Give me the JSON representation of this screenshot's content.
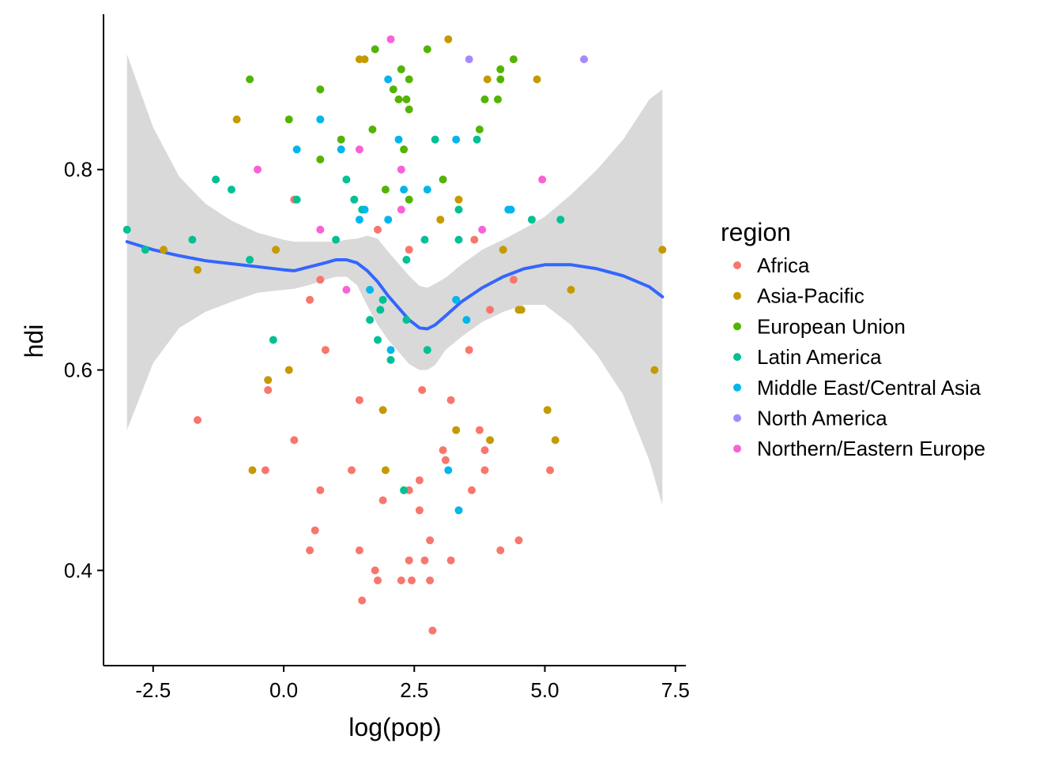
{
  "chart_data": {
    "type": "scatter",
    "xlabel": "log(pop)",
    "ylabel": "hdi",
    "xlim": [
      -3.45,
      7.7
    ],
    "ylim": [
      0.305,
      0.955
    ],
    "x_ticks": [
      -2.5,
      0.0,
      2.5,
      5.0,
      7.5
    ],
    "x_tick_labels": [
      "-2.5",
      "0.0",
      "2.5",
      "5.0",
      "7.5"
    ],
    "y_ticks": [
      0.4,
      0.6,
      0.8
    ],
    "y_tick_labels": [
      "0.4",
      "0.6",
      "0.8"
    ],
    "grid": false,
    "legend": {
      "title": "region",
      "position": "right",
      "entries": [
        {
          "name": "Africa",
          "color": "#F8766D"
        },
        {
          "name": "Asia-Pacific",
          "color": "#C49A00"
        },
        {
          "name": "European Union",
          "color": "#53B400"
        },
        {
          "name": "Latin America",
          "color": "#00C094"
        },
        {
          "name": "Middle East/Central Asia",
          "color": "#00B6EB"
        },
        {
          "name": "North America",
          "color": "#A58AFF"
        },
        {
          "name": "Northern/Eastern Europe",
          "color": "#FB61D7"
        }
      ]
    },
    "series": [
      {
        "name": "Africa",
        "color": "#F8766D",
        "points": [
          [
            -1.65,
            0.55
          ],
          [
            -0.3,
            0.58
          ],
          [
            -0.35,
            0.5
          ],
          [
            0.2,
            0.53
          ],
          [
            0.2,
            0.77
          ],
          [
            0.5,
            0.67
          ],
          [
            0.5,
            0.42
          ],
          [
            0.6,
            0.44
          ],
          [
            0.7,
            0.48
          ],
          [
            0.7,
            0.69
          ],
          [
            0.8,
            0.62
          ],
          [
            1.3,
            0.5
          ],
          [
            1.45,
            0.57
          ],
          [
            1.45,
            0.42
          ],
          [
            1.5,
            0.37
          ],
          [
            1.75,
            0.4
          ],
          [
            1.8,
            0.39
          ],
          [
            1.8,
            0.74
          ],
          [
            1.9,
            0.47
          ],
          [
            2.25,
            0.39
          ],
          [
            2.4,
            0.41
          ],
          [
            2.4,
            0.48
          ],
          [
            2.4,
            0.72
          ],
          [
            2.45,
            0.39
          ],
          [
            2.6,
            0.49
          ],
          [
            2.6,
            0.46
          ],
          [
            2.65,
            0.58
          ],
          [
            2.7,
            0.41
          ],
          [
            2.8,
            0.43
          ],
          [
            2.8,
            0.39
          ],
          [
            2.85,
            0.34
          ],
          [
            3.05,
            0.52
          ],
          [
            3.1,
            0.51
          ],
          [
            3.2,
            0.41
          ],
          [
            3.2,
            0.57
          ],
          [
            3.55,
            0.62
          ],
          [
            3.6,
            0.48
          ],
          [
            3.65,
            0.73
          ],
          [
            3.75,
            0.54
          ],
          [
            3.85,
            0.52
          ],
          [
            3.85,
            0.5
          ],
          [
            3.95,
            0.66
          ],
          [
            4.15,
            0.42
          ],
          [
            4.4,
            0.69
          ],
          [
            4.5,
            0.43
          ],
          [
            5.1,
            0.5
          ]
        ]
      },
      {
        "name": "Asia-Pacific",
        "color": "#C49A00",
        "points": [
          [
            -2.3,
            0.72
          ],
          [
            -1.65,
            0.7
          ],
          [
            -0.9,
            0.85
          ],
          [
            -0.6,
            0.5
          ],
          [
            -0.15,
            0.72
          ],
          [
            -0.3,
            0.59
          ],
          [
            0.1,
            0.6
          ],
          [
            1.45,
            0.91
          ],
          [
            1.55,
            0.91
          ],
          [
            1.9,
            0.56
          ],
          [
            1.95,
            0.5
          ],
          [
            3.0,
            0.75
          ],
          [
            3.15,
            0.93
          ],
          [
            3.3,
            0.54
          ],
          [
            3.35,
            0.77
          ],
          [
            3.9,
            0.89
          ],
          [
            3.95,
            0.53
          ],
          [
            4.2,
            0.72
          ],
          [
            4.5,
            0.66
          ],
          [
            4.55,
            0.66
          ],
          [
            4.85,
            0.89
          ],
          [
            5.05,
            0.56
          ],
          [
            5.2,
            0.53
          ],
          [
            5.5,
            0.68
          ],
          [
            7.1,
            0.6
          ],
          [
            7.25,
            0.72
          ]
        ]
      },
      {
        "name": "European Union",
        "color": "#53B400",
        "points": [
          [
            -0.65,
            0.89
          ],
          [
            0.1,
            0.85
          ],
          [
            0.7,
            0.88
          ],
          [
            0.7,
            0.81
          ],
          [
            1.1,
            0.83
          ],
          [
            1.75,
            0.92
          ],
          [
            1.7,
            0.84
          ],
          [
            1.95,
            0.78
          ],
          [
            2.1,
            0.88
          ],
          [
            2.2,
            0.87
          ],
          [
            2.25,
            0.9
          ],
          [
            2.3,
            0.82
          ],
          [
            2.35,
            0.87
          ],
          [
            2.4,
            0.89
          ],
          [
            2.4,
            0.86
          ],
          [
            2.4,
            0.77
          ],
          [
            2.75,
            0.92
          ],
          [
            3.05,
            0.79
          ],
          [
            3.75,
            0.84
          ],
          [
            3.85,
            0.87
          ],
          [
            4.1,
            0.87
          ],
          [
            4.15,
            0.89
          ],
          [
            4.15,
            0.9
          ],
          [
            4.4,
            0.91
          ]
        ]
      },
      {
        "name": "Latin America",
        "color": "#00C094",
        "points": [
          [
            -3.0,
            0.74
          ],
          [
            -2.65,
            0.72
          ],
          [
            -1.75,
            0.73
          ],
          [
            -1.3,
            0.79
          ],
          [
            -1.0,
            0.78
          ],
          [
            -0.65,
            0.71
          ],
          [
            -0.2,
            0.63
          ],
          [
            0.25,
            0.77
          ],
          [
            1.0,
            0.73
          ],
          [
            1.2,
            0.79
          ],
          [
            1.35,
            0.77
          ],
          [
            1.5,
            0.76
          ],
          [
            1.65,
            0.65
          ],
          [
            1.8,
            0.63
          ],
          [
            1.85,
            0.66
          ],
          [
            1.9,
            0.67
          ],
          [
            2.05,
            0.61
          ],
          [
            2.3,
            0.48
          ],
          [
            2.35,
            0.71
          ],
          [
            2.35,
            0.65
          ],
          [
            2.7,
            0.73
          ],
          [
            2.75,
            0.62
          ],
          [
            2.9,
            0.83
          ],
          [
            3.35,
            0.73
          ],
          [
            3.35,
            0.76
          ],
          [
            3.7,
            0.83
          ],
          [
            4.75,
            0.75
          ],
          [
            5.3,
            0.75
          ]
        ]
      },
      {
        "name": "Middle East/Central Asia",
        "color": "#00B6EB",
        "points": [
          [
            0.25,
            0.82
          ],
          [
            0.7,
            0.85
          ],
          [
            1.1,
            0.82
          ],
          [
            1.45,
            0.75
          ],
          [
            1.55,
            0.76
          ],
          [
            1.65,
            0.68
          ],
          [
            2.0,
            0.75
          ],
          [
            2.0,
            0.89
          ],
          [
            2.05,
            0.62
          ],
          [
            2.2,
            0.83
          ],
          [
            2.3,
            0.78
          ],
          [
            2.75,
            0.78
          ],
          [
            3.15,
            0.5
          ],
          [
            3.3,
            0.67
          ],
          [
            3.3,
            0.83
          ],
          [
            3.35,
            0.46
          ],
          [
            3.5,
            0.65
          ],
          [
            4.3,
            0.76
          ],
          [
            4.35,
            0.76
          ]
        ]
      },
      {
        "name": "North America",
        "color": "#A58AFF",
        "points": [
          [
            3.55,
            0.91
          ],
          [
            5.75,
            0.91
          ]
        ]
      },
      {
        "name": "Northern/Eastern Europe",
        "color": "#FB61D7",
        "points": [
          [
            -0.5,
            0.8
          ],
          [
            0.7,
            0.74
          ],
          [
            1.2,
            0.68
          ],
          [
            1.45,
            0.82
          ],
          [
            2.05,
            0.93
          ],
          [
            2.25,
            0.76
          ],
          [
            2.25,
            0.8
          ],
          [
            3.8,
            0.74
          ],
          [
            4.95,
            0.79
          ]
        ]
      }
    ],
    "smooth": {
      "color": "#3366FF",
      "band_color": "#D9D9D9",
      "x": [
        -3.0,
        -2.5,
        -2.0,
        -1.5,
        -1.0,
        -0.5,
        0.0,
        0.2,
        0.5,
        0.8,
        1.0,
        1.2,
        1.4,
        1.6,
        1.8,
        2.0,
        2.2,
        2.4,
        2.6,
        2.75,
        2.9,
        3.1,
        3.4,
        3.8,
        4.2,
        4.6,
        5.0,
        5.5,
        6.0,
        6.5,
        7.0,
        7.25
      ],
      "fit": [
        0.728,
        0.72,
        0.714,
        0.709,
        0.706,
        0.703,
        0.7,
        0.699,
        0.703,
        0.707,
        0.71,
        0.71,
        0.707,
        0.699,
        0.688,
        0.674,
        0.662,
        0.65,
        0.642,
        0.641,
        0.645,
        0.654,
        0.668,
        0.682,
        0.693,
        0.701,
        0.705,
        0.705,
        0.701,
        0.694,
        0.683,
        0.673
      ],
      "lower": [
        0.54,
        0.607,
        0.642,
        0.658,
        0.668,
        0.677,
        0.68,
        0.681,
        0.685,
        0.69,
        0.693,
        0.693,
        0.685,
        0.664,
        0.645,
        0.63,
        0.618,
        0.606,
        0.6,
        0.6,
        0.605,
        0.62,
        0.633,
        0.648,
        0.658,
        0.665,
        0.665,
        0.645,
        0.615,
        0.575,
        0.51,
        0.465
      ],
      "upper": [
        0.915,
        0.842,
        0.793,
        0.766,
        0.749,
        0.737,
        0.73,
        0.728,
        0.728,
        0.728,
        0.728,
        0.73,
        0.731,
        0.734,
        0.731,
        0.718,
        0.706,
        0.694,
        0.684,
        0.682,
        0.686,
        0.692,
        0.705,
        0.72,
        0.73,
        0.741,
        0.753,
        0.775,
        0.8,
        0.83,
        0.87,
        0.88
      ]
    }
  }
}
